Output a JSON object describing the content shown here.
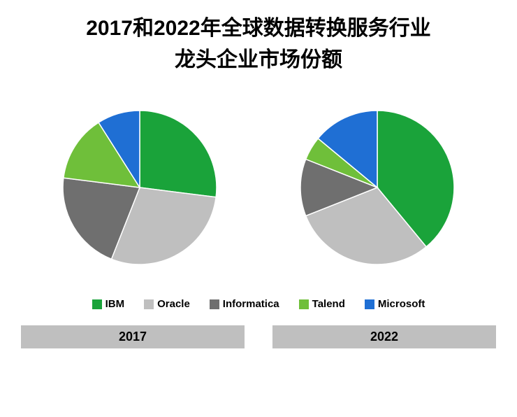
{
  "title_line1": "2017和2022年全球数据转换服务行业",
  "title_line2": "龙头企业市场份额",
  "title_fontsize": 30,
  "background_color": "#ffffff",
  "year_label_bg": "#bfbfbf",
  "legend": [
    {
      "label": "IBM",
      "color": "#1aa33a"
    },
    {
      "label": "Oracle",
      "color": "#bfbfbf"
    },
    {
      "label": "Informatica",
      "color": "#6f6f6f"
    },
    {
      "label": "Talend",
      "color": "#6fbf3a"
    },
    {
      "label": "Microsoft",
      "color": "#1f6fd4"
    }
  ],
  "charts": [
    {
      "year": "2017",
      "type": "pie",
      "radius": 110,
      "slices": [
        {
          "name": "IBM",
          "value": 27,
          "color": "#1aa33a"
        },
        {
          "name": "Oracle",
          "value": 29,
          "color": "#bfbfbf"
        },
        {
          "name": "Informatica",
          "value": 21,
          "color": "#6f6f6f"
        },
        {
          "name": "Talend",
          "value": 14,
          "color": "#6fbf3a"
        },
        {
          "name": "Microsoft",
          "value": 9,
          "color": "#1f6fd4"
        }
      ]
    },
    {
      "year": "2022",
      "type": "pie",
      "radius": 110,
      "slices": [
        {
          "name": "IBM",
          "value": 39,
          "color": "#1aa33a"
        },
        {
          "name": "Oracle",
          "value": 30,
          "color": "#bfbfbf"
        },
        {
          "name": "Informatica",
          "value": 12,
          "color": "#6f6f6f"
        },
        {
          "name": "Talend",
          "value": 5,
          "color": "#6fbf3a"
        },
        {
          "name": "Microsoft",
          "value": 14,
          "color": "#1f6fd4"
        }
      ]
    }
  ]
}
